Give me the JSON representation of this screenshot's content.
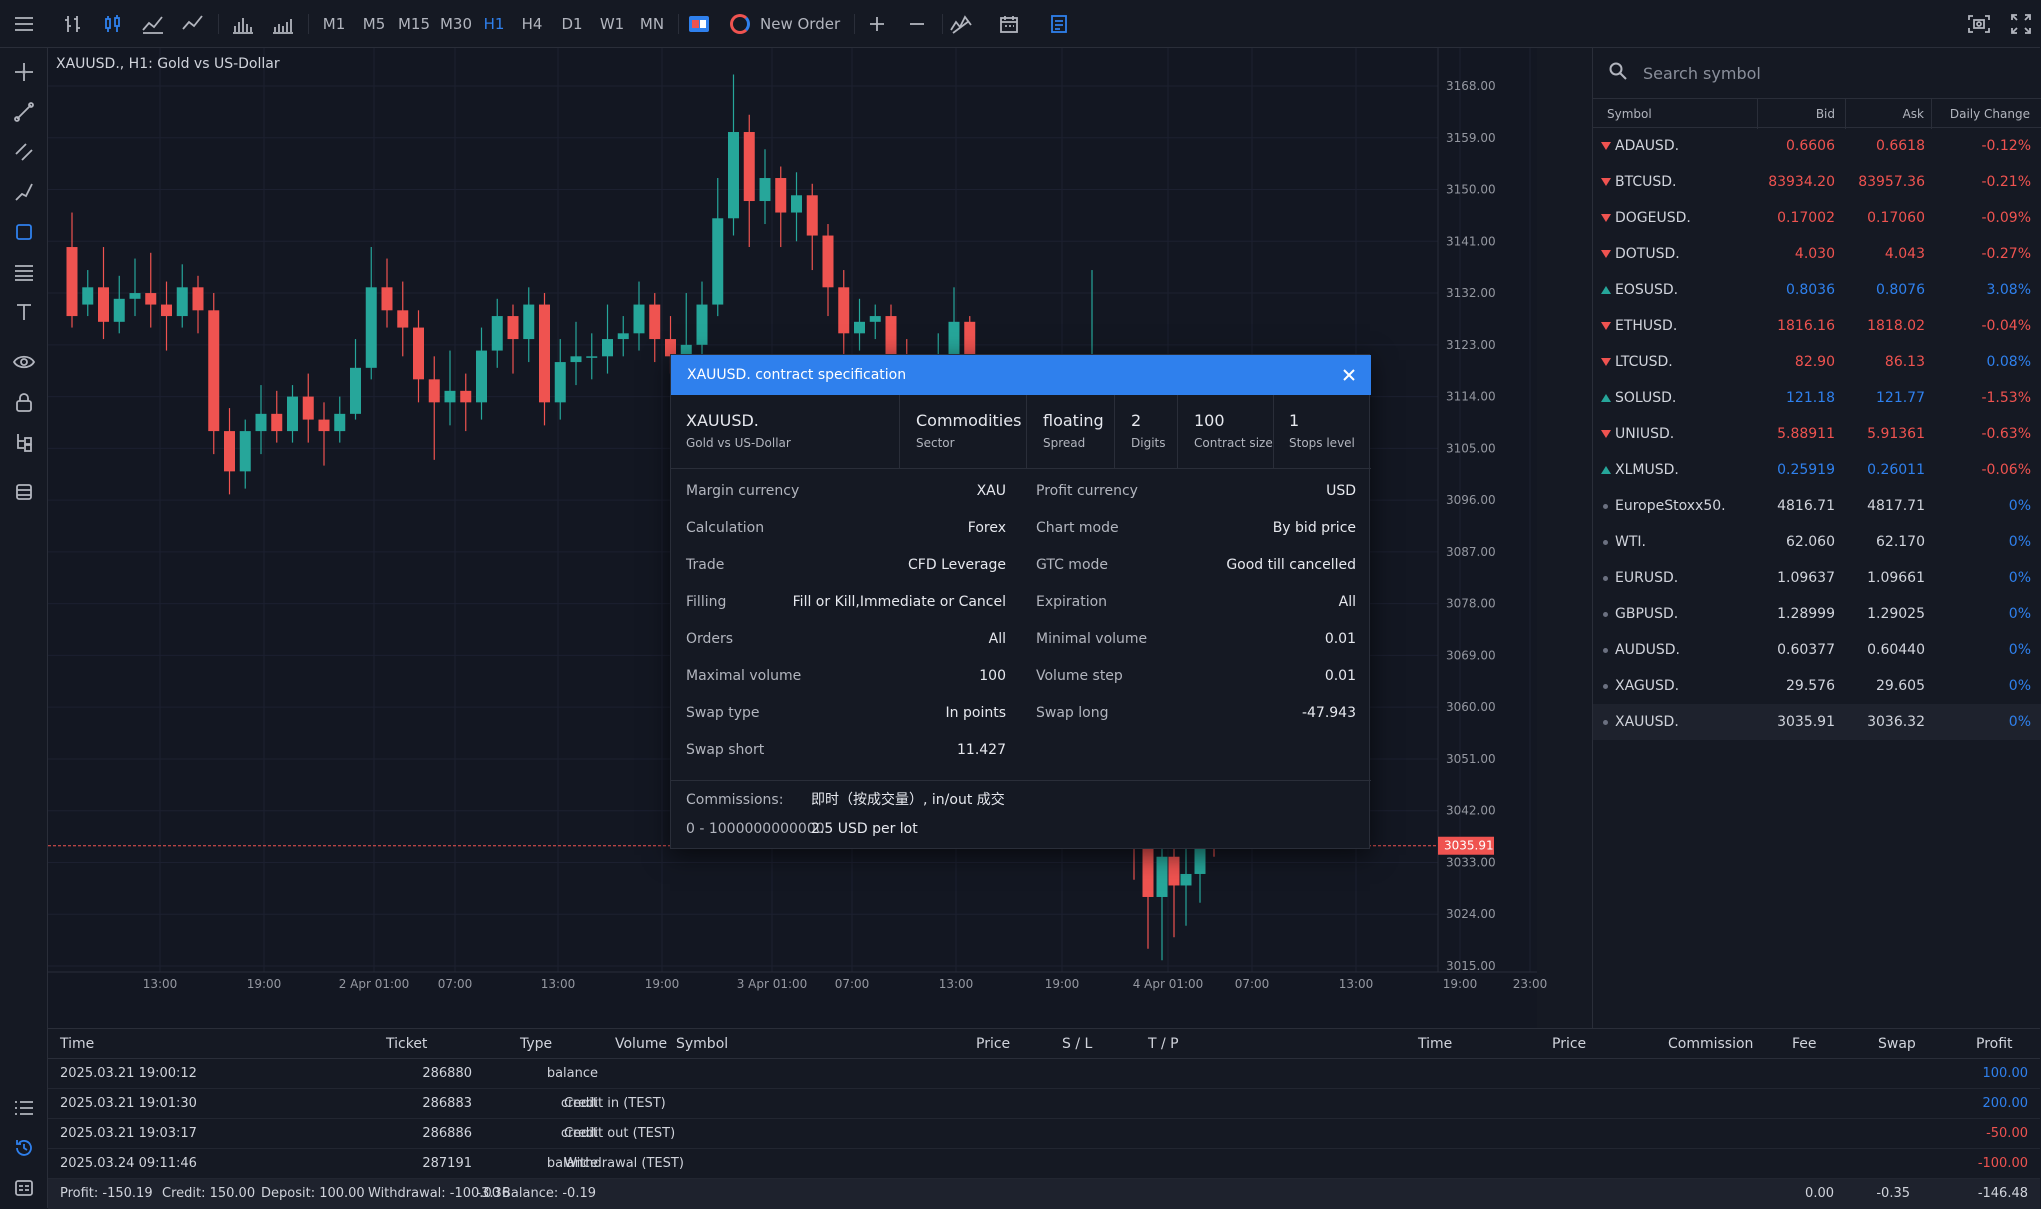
{
  "toolbar": {
    "timeframes": [
      "M1",
      "M5",
      "M15",
      "M30",
      "H1",
      "H4",
      "D1",
      "W1",
      "MN"
    ],
    "active_timeframe": "H1",
    "new_order": "New Order"
  },
  "chart": {
    "title": "XAUUSD., H1: Gold vs US-Dollar",
    "price_labels": [
      "3168.00",
      "3159.00",
      "3150.00",
      "3141.00",
      "3132.00",
      "3123.00",
      "3114.00",
      "3105.00",
      "3096.00",
      "3087.00",
      "3078.00",
      "3069.00",
      "3060.00",
      "3051.00",
      "3042.00",
      "3033.00",
      "3024.00",
      "3015.00"
    ],
    "current_price": "3035.91",
    "time_labels": [
      "13:00",
      "19:00",
      "2 Apr 01:00",
      "07:00",
      "13:00",
      "19:00",
      "3 Apr 01:00",
      "07:00",
      "13:00",
      "19:00",
      "4 Apr 01:00",
      "07:00",
      "13:00",
      "19:00",
      "23:00"
    ]
  },
  "watchlist": {
    "search_placeholder": "Search symbol",
    "headers": {
      "symbol": "Symbol",
      "bid": "Bid",
      "ask": "Ask",
      "change": "Daily Change"
    },
    "rows": [
      {
        "symbol": "ADAUSD.",
        "bid": "0.6606",
        "ask": "0.6618",
        "change": "-0.12%",
        "dir": "down"
      },
      {
        "symbol": "BTCUSD.",
        "bid": "83934.20",
        "ask": "83957.36",
        "change": "-0.21%",
        "dir": "down"
      },
      {
        "symbol": "DOGEUSD.",
        "bid": "0.17002",
        "ask": "0.17060",
        "change": "-0.09%",
        "dir": "down"
      },
      {
        "symbol": "DOTUSD.",
        "bid": "4.030",
        "ask": "4.043",
        "change": "-0.27%",
        "dir": "down"
      },
      {
        "symbol": "EOSUSD.",
        "bid": "0.8036",
        "ask": "0.8076",
        "change": "3.08%",
        "dir": "up"
      },
      {
        "symbol": "ETHUSD.",
        "bid": "1816.16",
        "ask": "1818.02",
        "change": "-0.04%",
        "dir": "down"
      },
      {
        "symbol": "LTCUSD.",
        "bid": "82.90",
        "ask": "86.13",
        "change": "0.08%",
        "dir": "down"
      },
      {
        "symbol": "SOLUSD.",
        "bid": "121.18",
        "ask": "121.77",
        "change": "-1.53%",
        "dir": "up"
      },
      {
        "symbol": "UNIUSD.",
        "bid": "5.88911",
        "ask": "5.91361",
        "change": "-0.63%",
        "dir": "down"
      },
      {
        "symbol": "XLMUSD.",
        "bid": "0.25919",
        "ask": "0.26011",
        "change": "-0.06%",
        "dir": "up"
      },
      {
        "symbol": "EuropeStoxx50.",
        "bid": "4816.71",
        "ask": "4817.71",
        "change": "0%",
        "dir": "none"
      },
      {
        "symbol": "WTI.",
        "bid": "62.060",
        "ask": "62.170",
        "change": "0%",
        "dir": "none"
      },
      {
        "symbol": "EURUSD.",
        "bid": "1.09637",
        "ask": "1.09661",
        "change": "0%",
        "dir": "none"
      },
      {
        "symbol": "GBPUSD.",
        "bid": "1.28999",
        "ask": "1.29025",
        "change": "0%",
        "dir": "none"
      },
      {
        "symbol": "AUDUSD.",
        "bid": "0.60377",
        "ask": "0.60440",
        "change": "0%",
        "dir": "none"
      },
      {
        "symbol": "XAGUSD.",
        "bid": "29.576",
        "ask": "29.605",
        "change": "0%",
        "dir": "none"
      },
      {
        "symbol": "XAUUSD.",
        "bid": "3035.91",
        "ask": "3036.32",
        "change": "0%",
        "dir": "none"
      }
    ]
  },
  "dialog": {
    "title": "XAUUSD. contract specification",
    "symbol": "XAUUSD.",
    "description": "Gold vs US-Dollar",
    "summary": [
      {
        "value": "Commodities",
        "label": "Sector"
      },
      {
        "value": "floating",
        "label": "Spread"
      },
      {
        "value": "2",
        "label": "Digits"
      },
      {
        "value": "100",
        "label": "Contract size"
      },
      {
        "value": "1",
        "label": "Stops level"
      }
    ],
    "left": [
      {
        "k": "Margin currency",
        "v": "XAU"
      },
      {
        "k": "Calculation",
        "v": "Forex"
      },
      {
        "k": "Trade",
        "v": "CFD Leverage"
      },
      {
        "k": "Filling",
        "v": "Fill or Kill,Immediate or Cancel"
      },
      {
        "k": "Orders",
        "v": "All"
      },
      {
        "k": "Maximal volume",
        "v": "100"
      },
      {
        "k": "Swap type",
        "v": "In points"
      },
      {
        "k": "Swap short",
        "v": "11.427"
      }
    ],
    "right": [
      {
        "k": "Profit currency",
        "v": "USD"
      },
      {
        "k": "Chart mode",
        "v": "By bid price"
      },
      {
        "k": "GTC mode",
        "v": "Good till cancelled"
      },
      {
        "k": "Expiration",
        "v": "All"
      },
      {
        "k": "Minimal volume",
        "v": "0.01"
      },
      {
        "k": "Volume step",
        "v": "0.01"
      },
      {
        "k": "Swap long",
        "v": "-47.943"
      }
    ],
    "commissions_label": "Commissions:",
    "commissions_desc": "即时（按成交量）, in/out 成交",
    "commissions_range": "0 - 1000000000000",
    "commissions_value": "2.5 USD per lot"
  },
  "history": {
    "headers": {
      "time": "Time",
      "ticket": "Ticket",
      "type": "Type",
      "volume": "Volume",
      "symbol": "Symbol",
      "price": "Price",
      "sl": "S / L",
      "tp": "T / P",
      "time2": "Time",
      "price2": "Price",
      "commission": "Commission",
      "fee": "Fee",
      "swap": "Swap",
      "profit": "Profit"
    },
    "rows": [
      {
        "time": "2025.03.21 19:00:12",
        "ticket": "286880",
        "type": "balance",
        "comment": "",
        "profit": "100.00"
      },
      {
        "time": "2025.03.21 19:01:30",
        "ticket": "286883",
        "type": "credit",
        "comment": "Credit in (TEST)",
        "profit": "200.00"
      },
      {
        "time": "2025.03.21 19:03:17",
        "ticket": "286886",
        "type": "credit",
        "comment": "Credit out (TEST)",
        "profit": "-50.00"
      },
      {
        "time": "2025.03.24 09:11:46",
        "ticket": "287191",
        "type": "balance",
        "comment": "Withdrawal (TEST)",
        "profit": "-100.00"
      }
    ],
    "footer": {
      "profit": "Profit: -150.19",
      "credit": "Credit: 150.00",
      "deposit": "Deposit: 100.00",
      "withdrawal": "Withdrawal: -100.00",
      "balance": "Balance: -0.19",
      "commission": "-3.36",
      "fee": "0.00",
      "swap": "-0.35",
      "total": "-146.48"
    }
  },
  "colors": {
    "up": "#26a69a",
    "down": "#ef5350",
    "blue": "#2f80ed"
  }
}
